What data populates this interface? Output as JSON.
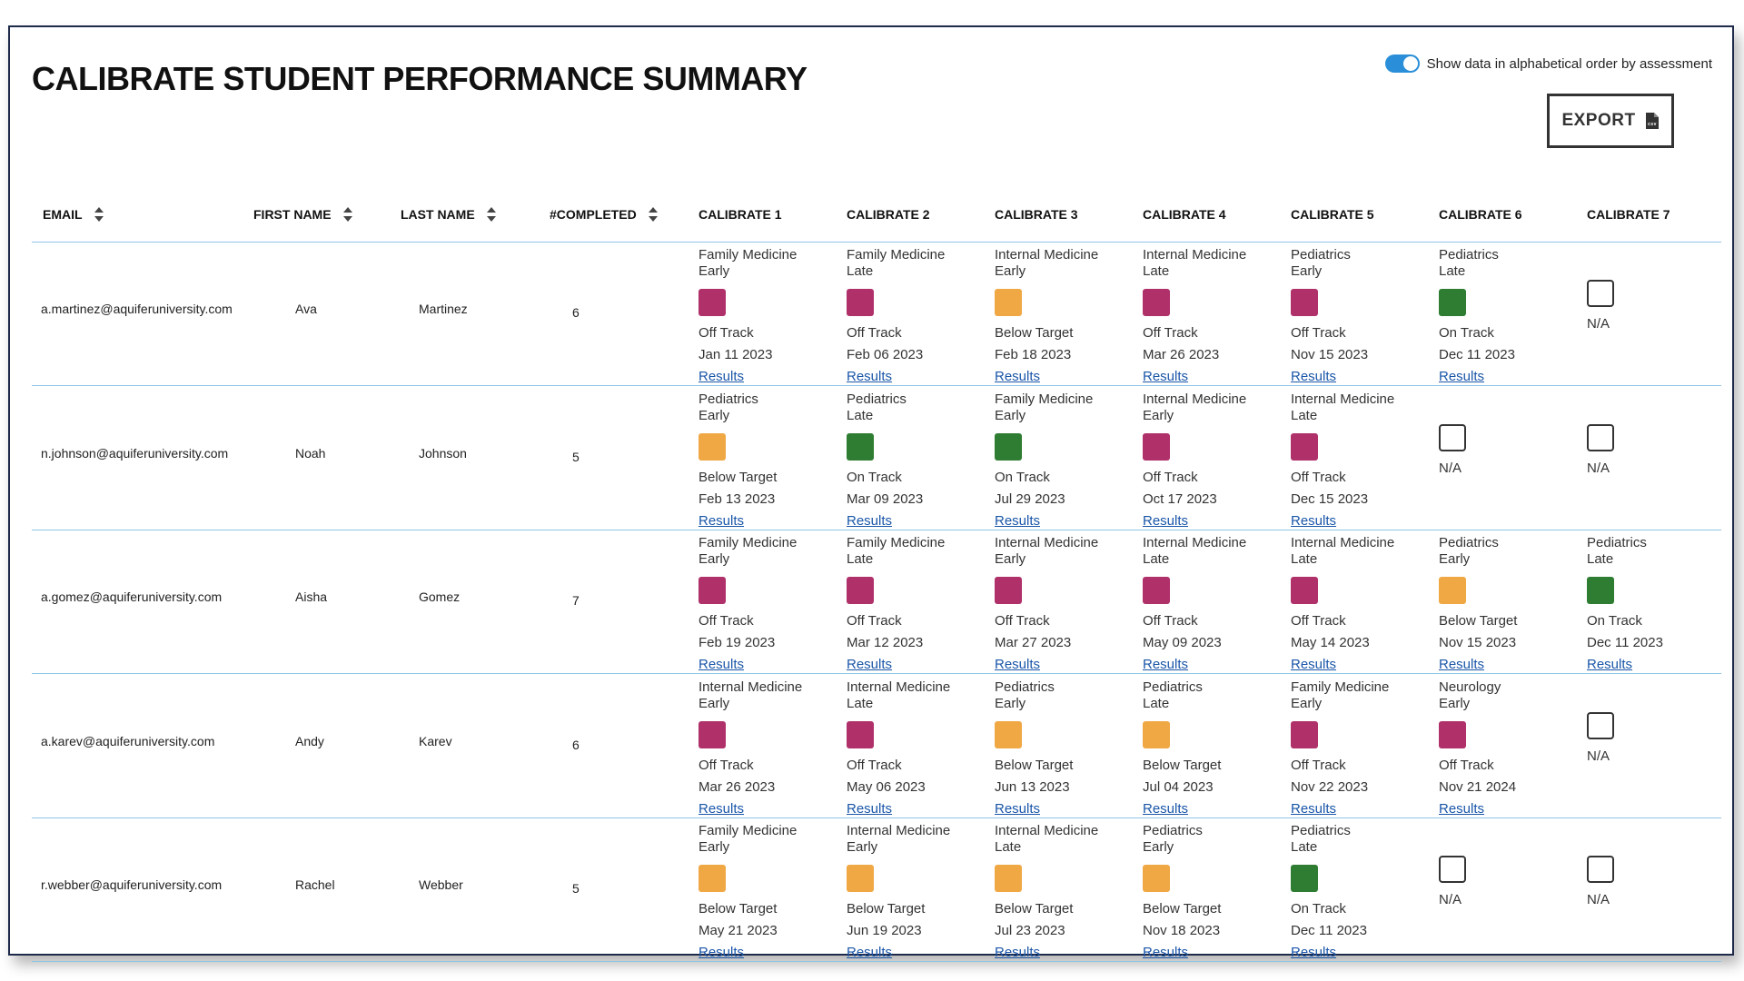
{
  "title": "CALIBRATE STUDENT PERFORMANCE SUMMARY",
  "toggle": {
    "label": "Show data in alphabetical order by assessment",
    "on": true
  },
  "export": {
    "label": "EXPORT",
    "icon": "csv-file-icon"
  },
  "headers": {
    "email": "EMAIL",
    "first_name": "FIRST NAME",
    "last_name": "LAST NAME",
    "completed": "#COMPLETED",
    "calibrate": [
      "CALIBRATE 1",
      "CALIBRATE 2",
      "CALIBRATE 3",
      "CALIBRATE 4",
      "CALIBRATE 5",
      "CALIBRATE 6",
      "CALIBRATE 7"
    ]
  },
  "colors": {
    "off_track": "#b0306a",
    "below_target": "#f0a845",
    "on_track": "#2e7d32",
    "link": "#1a56a8",
    "rule": "#8ec6e6"
  },
  "rows": [
    {
      "email": "a.martinez@aquiferuniversity.com",
      "first": "Ava",
      "last": "Martinez",
      "completed": "6",
      "cal": [
        {
          "course": "Family Medicine",
          "timing": "Early",
          "status": "Off Track",
          "date": "Jan 11 2023",
          "link": "Results"
        },
        {
          "course": "Family Medicine",
          "timing": "Late",
          "status": "Off Track",
          "date": "Feb 06 2023",
          "link": "Results"
        },
        {
          "course": "Internal Medicine",
          "timing": "Early",
          "status": "Below Target",
          "date": "Feb 18 2023",
          "link": "Results"
        },
        {
          "course": "Internal Medicine",
          "timing": "Late",
          "status": "Off Track",
          "date": "Mar 26 2023",
          "link": "Results"
        },
        {
          "course": "Pediatrics",
          "timing": "Early",
          "status": "Off Track",
          "date": "Nov 15 2023",
          "link": "Results"
        },
        {
          "course": "Pediatrics",
          "timing": "Late",
          "status": "On Track",
          "date": "Dec 11 2023",
          "link": "Results"
        },
        {
          "status": "N/A"
        }
      ]
    },
    {
      "email": "n.johnson@aquiferuniversity.com",
      "first": "Noah",
      "last": "Johnson",
      "completed": "5",
      "cal": [
        {
          "course": "Pediatrics",
          "timing": "Early",
          "status": "Below Target",
          "date": "Feb 13 2023",
          "link": "Results"
        },
        {
          "course": "Pediatrics",
          "timing": "Late",
          "status": "On Track",
          "date": "Mar 09 2023",
          "link": "Results"
        },
        {
          "course": "Family Medicine",
          "timing": "Early",
          "status": "On Track",
          "date": "Jul 29 2023",
          "link": "Results"
        },
        {
          "course": "Internal Medicine",
          "timing": "Early",
          "status": "Off Track",
          "date": "Oct 17 2023",
          "link": "Results"
        },
        {
          "course": "Internal Medicine",
          "timing": "Late",
          "status": "Off Track",
          "date": "Dec 15 2023",
          "link": "Results"
        },
        {
          "status": "N/A"
        },
        {
          "status": "N/A"
        }
      ]
    },
    {
      "email": "a.gomez@aquiferuniversity.com",
      "first": "Aisha",
      "last": "Gomez",
      "completed": "7",
      "cal": [
        {
          "course": "Family Medicine",
          "timing": "Early",
          "status": "Off Track",
          "date": "Feb 19 2023",
          "link": "Results"
        },
        {
          "course": "Family Medicine",
          "timing": "Late",
          "status": "Off Track",
          "date": "Mar 12 2023",
          "link": "Results"
        },
        {
          "course": "Internal Medicine",
          "timing": "Early",
          "status": "Off Track",
          "date": "Mar 27 2023",
          "link": "Results"
        },
        {
          "course": "Internal Medicine",
          "timing": "Late",
          "status": "Off Track",
          "date": "May 09 2023",
          "link": "Results"
        },
        {
          "course": "Internal Medicine",
          "timing": "Late",
          "status": "Off Track",
          "date": "May 14 2023",
          "link": "Results"
        },
        {
          "course": "Pediatrics",
          "timing": "Early",
          "status": "Below Target",
          "date": "Nov 15 2023",
          "link": "Results"
        },
        {
          "course": "Pediatrics",
          "timing": "Late",
          "status": "On Track",
          "date": "Dec 11 2023",
          "link": "Results"
        }
      ]
    },
    {
      "email": "a.karev@aquiferuniversity.com",
      "first": "Andy",
      "last": "Karev",
      "completed": "6",
      "cal": [
        {
          "course": "Internal Medicine",
          "timing": "Early",
          "status": "Off Track",
          "date": "Mar 26 2023",
          "link": "Results"
        },
        {
          "course": "Internal Medicine",
          "timing": "Late",
          "status": "Off Track",
          "date": "May 06 2023",
          "link": "Results"
        },
        {
          "course": "Pediatrics",
          "timing": "Early",
          "status": "Below Target",
          "date": "Jun 13 2023",
          "link": "Results"
        },
        {
          "course": "Pediatrics",
          "timing": "Late",
          "status": "Below Target",
          "date": "Jul 04 2023",
          "link": "Results"
        },
        {
          "course": "Family Medicine",
          "timing": "Early",
          "status": "Off Track",
          "date": "Nov 22 2023",
          "link": "Results"
        },
        {
          "course": "Neurology",
          "timing": "Early",
          "status": "Off Track",
          "date": "Nov 21 2024",
          "link": "Results"
        },
        {
          "status": "N/A"
        }
      ]
    },
    {
      "email": "r.webber@aquiferuniversity.com",
      "first": "Rachel",
      "last": "Webber",
      "completed": "5",
      "cal": [
        {
          "course": "Family Medicine",
          "timing": "Early",
          "status": "Below Target",
          "date": "May 21 2023",
          "link": "Results"
        },
        {
          "course": "Internal Medicine",
          "timing": "Early",
          "status": "Below Target",
          "date": "Jun 19 2023",
          "link": "Results"
        },
        {
          "course": "Internal Medicine",
          "timing": "Late",
          "status": "Below Target",
          "date": "Jul 23 2023",
          "link": "Results"
        },
        {
          "course": "Pediatrics",
          "timing": "Early",
          "status": "Below Target",
          "date": "Nov 18 2023",
          "link": "Results"
        },
        {
          "course": "Pediatrics",
          "timing": "Late",
          "status": "On Track",
          "date": "Dec 11 2023",
          "link": "Results"
        },
        {
          "status": "N/A"
        },
        {
          "status": "N/A"
        }
      ]
    }
  ]
}
